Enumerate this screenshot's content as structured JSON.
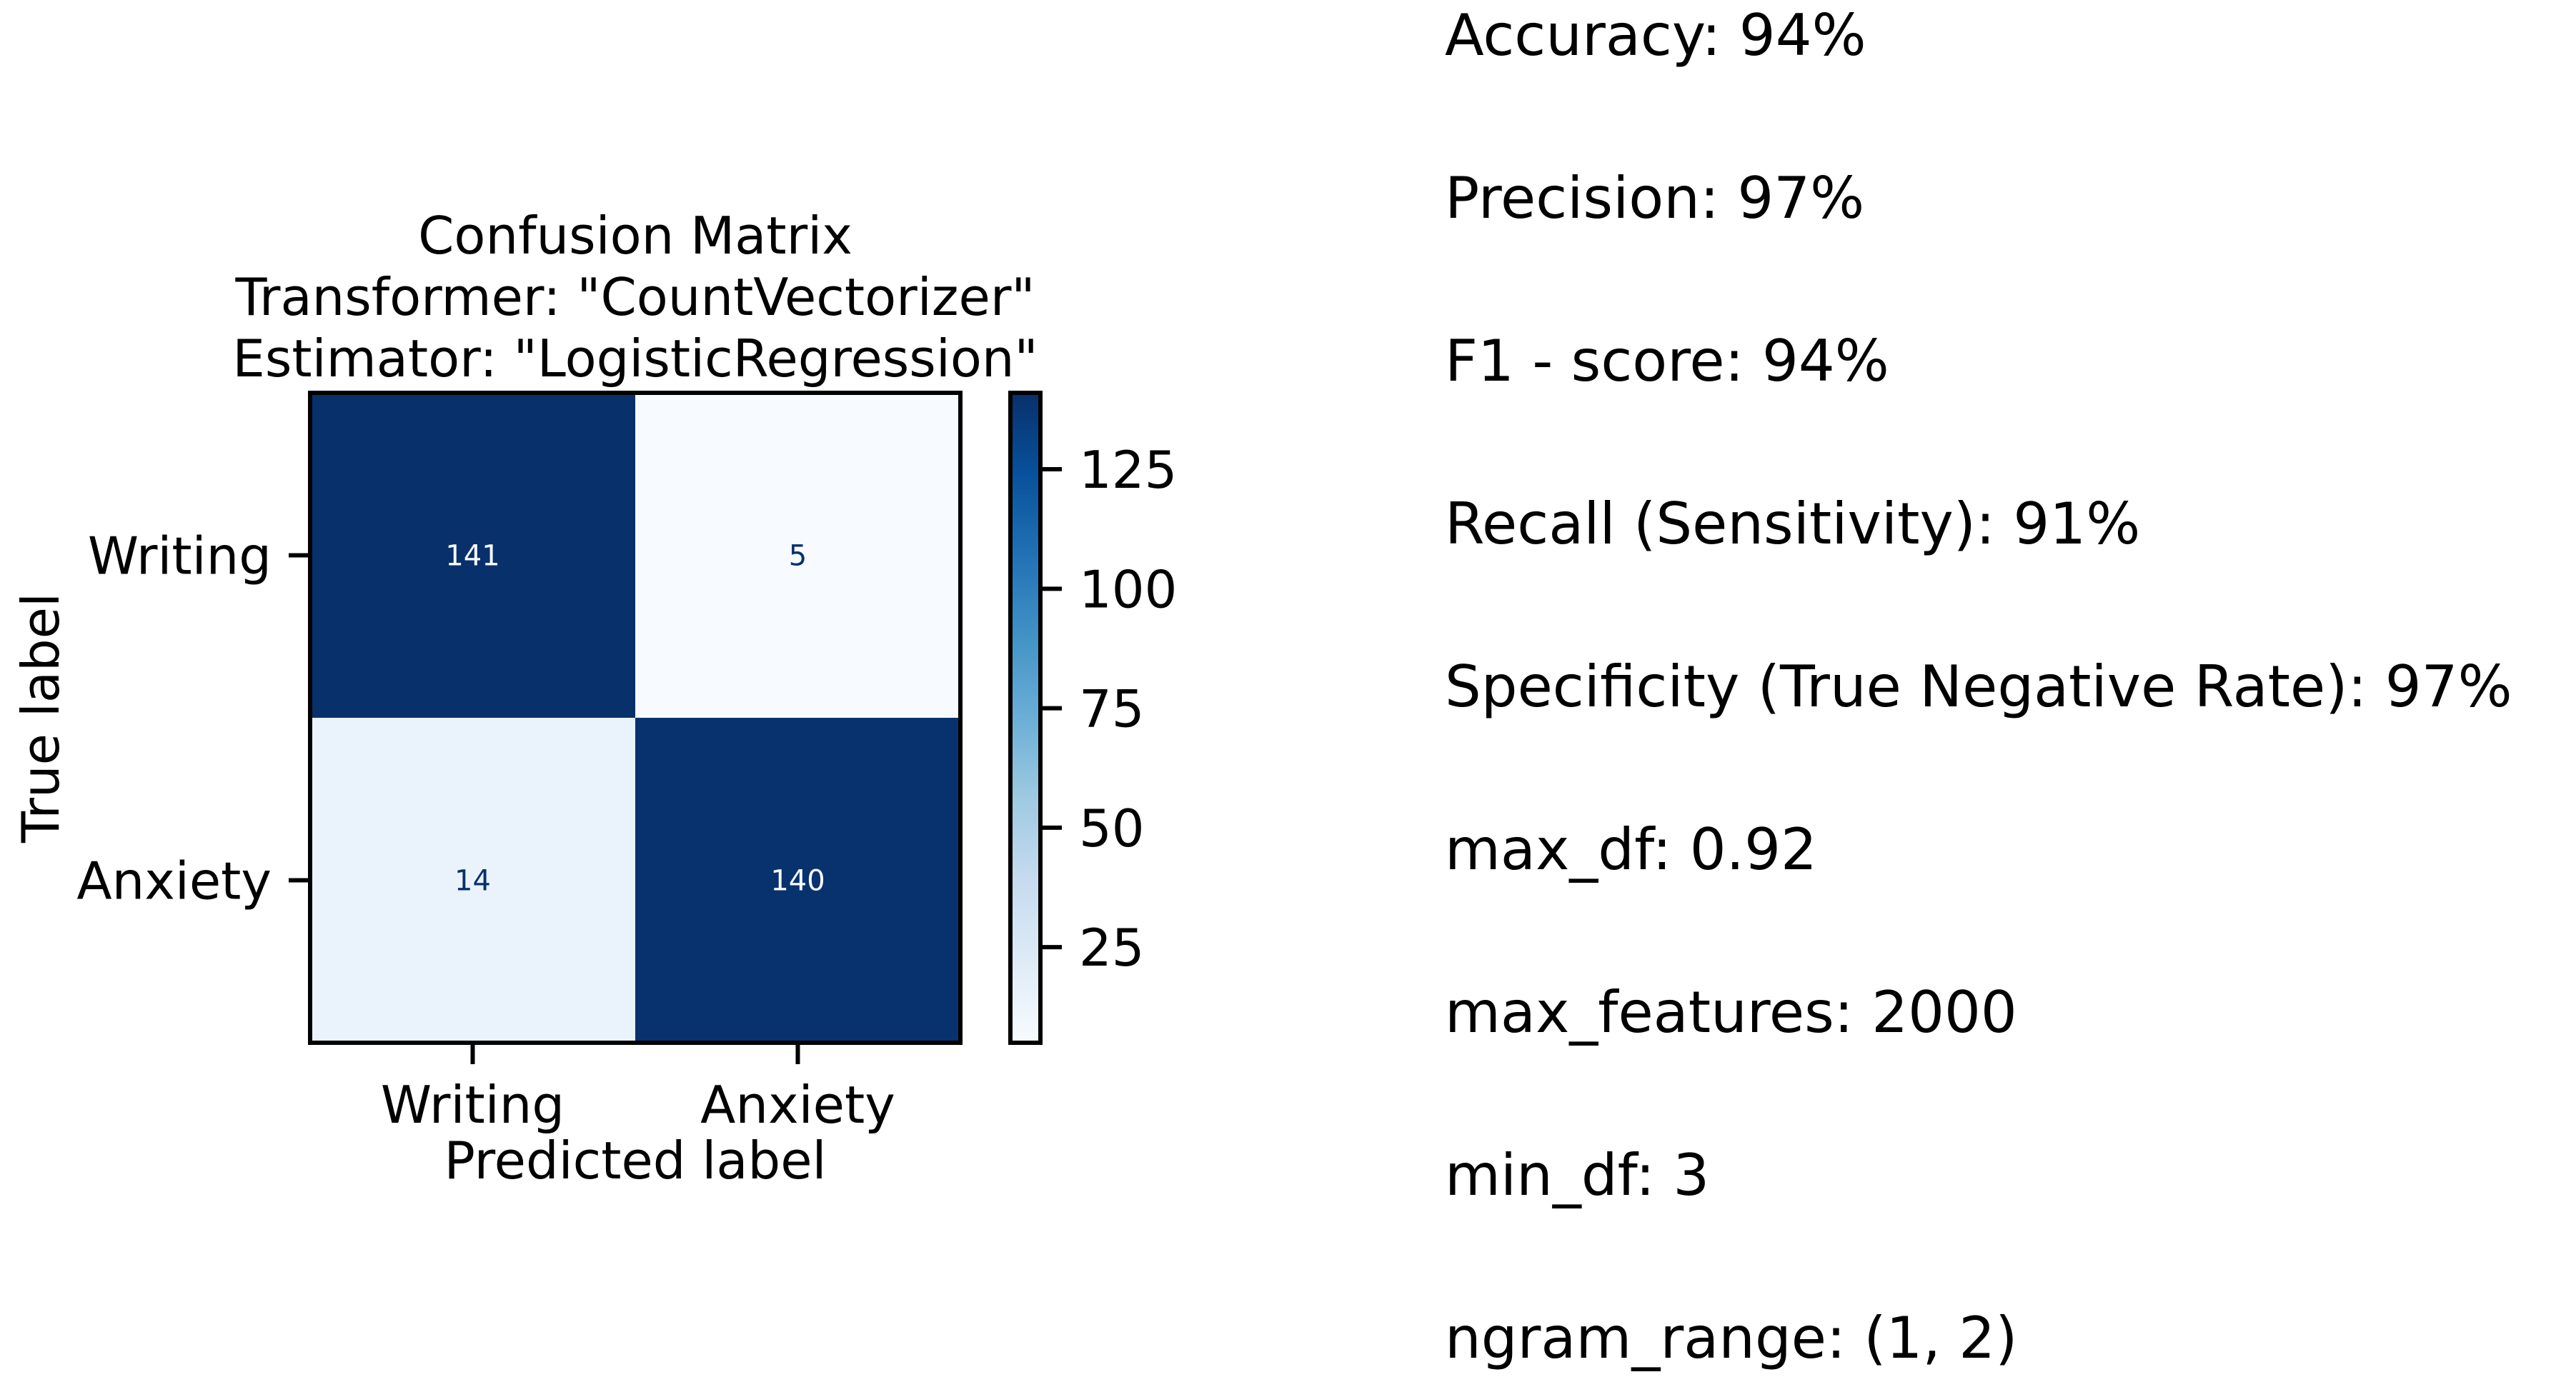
{
  "chart_data": {
    "type": "heatmap",
    "title_lines": [
      "Confusion Matrix",
      "Transformer: \"CountVectorizer\"",
      "Estimator: \"LogisticRegression\""
    ],
    "xlabel": "Predicted label",
    "ylabel": "True label",
    "x_categories": [
      "Writing",
      "Anxiety"
    ],
    "y_categories": [
      "Writing",
      "Anxiety"
    ],
    "matrix": [
      [
        141,
        5
      ],
      [
        14,
        140
      ]
    ],
    "colormap": "Blues",
    "colorbar": {
      "min": 5,
      "max": 141,
      "ticks": [
        25,
        50,
        75,
        100,
        125
      ],
      "colors": [
        "#f7fbff",
        "#deebf7",
        "#c6dbef",
        "#9ecae1",
        "#6baed6",
        "#4292c6",
        "#2171b5",
        "#08519c",
        "#08306b"
      ]
    },
    "text_color_dark": "#08306b",
    "text_color_light": "#f7fbff"
  },
  "stats": [
    "Accuracy: 94%",
    "Precision: 97%",
    "F1 - score: 94%",
    "Recall (Sensitivity): 91%",
    "Specificity (True Negative Rate): 97%",
    "max_df: 0.92",
    "max_features: 2000",
    "min_df: 3",
    "ngram_range: (1, 2)"
  ]
}
